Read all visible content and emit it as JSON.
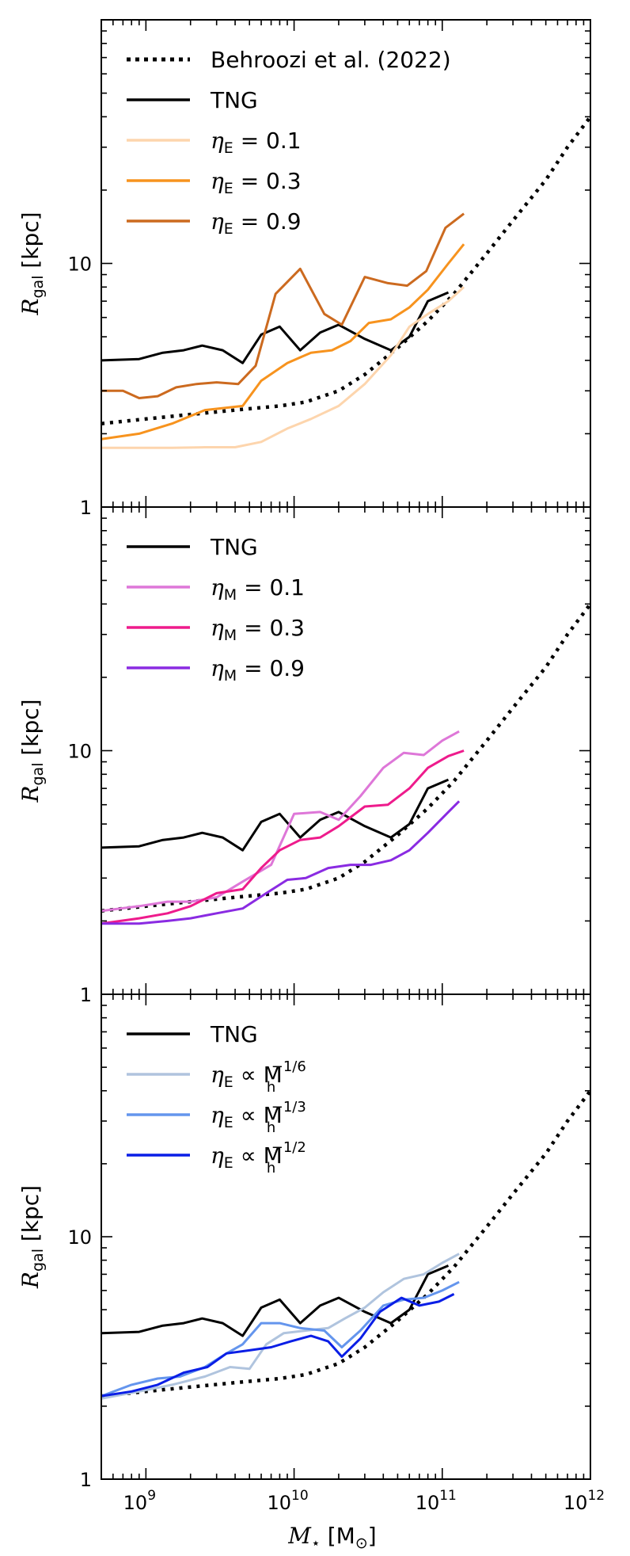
{
  "chart_data": [
    {
      "type": "line",
      "panel": "top",
      "ylabel": "R_gal [kpc]",
      "xlim": [
        500000000.0,
        1000000000000.0
      ],
      "ylim": [
        1,
        100
      ],
      "xscale": "log",
      "yscale": "log",
      "yticks": [
        {
          "value": 1,
          "label": "1"
        },
        {
          "value": 10,
          "label": "10"
        }
      ],
      "legend": [
        {
          "label": "Behroozi et al. (2022)",
          "color": "#000000",
          "dash": "dot"
        },
        {
          "label": "TNG",
          "color": "#000000",
          "dash": "solid"
        },
        {
          "label": "η_E = 0.1",
          "color": "#fdd5ad",
          "dash": "solid",
          "sym": "ηE",
          "rest": " = 0.1"
        },
        {
          "label": "η_E = 0.3",
          "color": "#f7931e",
          "dash": "solid",
          "sym": "ηE",
          "rest": " = 0.3"
        },
        {
          "label": "η_E = 0.9",
          "color": "#cc6a1f",
          "dash": "solid",
          "sym": "ηE",
          "rest": " = 0.9"
        }
      ],
      "series": [
        {
          "name": "Behroozi et al. (2022)",
          "color": "#000000",
          "style": "dot",
          "x": [
            500000000.0,
            1000000000.0,
            2000000000.0,
            4000000000.0,
            8000000000.0,
            12000000000.0,
            20000000000.0,
            30000000000.0,
            50000000000.0,
            80000000000.0,
            120000000000.0,
            200000000000.0,
            300000000000.0,
            500000000000.0,
            700000000000.0,
            1000000000000.0
          ],
          "y": [
            2.2,
            2.3,
            2.4,
            2.5,
            2.6,
            2.7,
            3.0,
            3.5,
            4.5,
            5.8,
            7.5,
            11,
            15,
            22,
            30,
            40
          ]
        },
        {
          "name": "TNG",
          "color": "#000000",
          "style": "solid",
          "x": [
            500000000.0,
            900000000.0,
            1300000000.0,
            1800000000.0,
            2400000000.0,
            3300000000.0,
            4500000000.0,
            6000000000.0,
            8000000000.0,
            11000000000.0,
            15000000000.0,
            20000000000.0,
            30000000000.0,
            45000000000.0,
            60000000000.0,
            80000000000.0,
            110000000000.0
          ],
          "y": [
            4.0,
            4.05,
            4.3,
            4.4,
            4.6,
            4.4,
            3.9,
            5.1,
            5.5,
            4.4,
            5.2,
            5.6,
            4.9,
            4.4,
            5.0,
            7.0,
            7.6
          ]
        },
        {
          "name": "η_E = 0.1",
          "color": "#fdd5ad",
          "style": "solid",
          "x": [
            500000000.0,
            900000000.0,
            1500000000.0,
            2500000000.0,
            4000000000.0,
            6000000000.0,
            9000000000.0,
            13000000000.0,
            20000000000.0,
            30000000000.0,
            45000000000.0,
            60000000000.0,
            80000000000.0,
            110000000000.0,
            140000000000.0
          ],
          "y": [
            1.75,
            1.75,
            1.75,
            1.76,
            1.76,
            1.85,
            2.1,
            2.3,
            2.6,
            3.2,
            4.2,
            5.5,
            6.2,
            7.0,
            8.0
          ]
        },
        {
          "name": "η_E = 0.3",
          "color": "#f7931e",
          "style": "solid",
          "x": [
            500000000.0,
            900000000.0,
            1500000000.0,
            2500000000.0,
            4500000000.0,
            6000000000.0,
            9000000000.0,
            13000000000.0,
            18000000000.0,
            24000000000.0,
            32000000000.0,
            45000000000.0,
            60000000000.0,
            80000000000.0,
            110000000000.0,
            140000000000.0
          ],
          "y": [
            1.9,
            2.0,
            2.2,
            2.5,
            2.6,
            3.3,
            3.9,
            4.3,
            4.4,
            4.8,
            5.7,
            5.9,
            6.6,
            7.8,
            10,
            12
          ]
        },
        {
          "name": "η_E = 0.9",
          "color": "#cc6a1f",
          "style": "solid",
          "x": [
            500000000.0,
            700000000.0,
            900000000.0,
            1200000000.0,
            1600000000.0,
            2200000000.0,
            3000000000.0,
            4200000000.0,
            5500000000.0,
            7500000000.0,
            11000000000.0,
            16000000000.0,
            21000000000.0,
            30000000000.0,
            43000000000.0,
            58000000000.0,
            78000000000.0,
            105000000000.0,
            140000000000.0
          ],
          "y": [
            3.0,
            3.0,
            2.8,
            2.85,
            3.1,
            3.2,
            3.25,
            3.2,
            3.8,
            7.5,
            9.5,
            6.2,
            5.6,
            8.8,
            8.3,
            8.1,
            9.3,
            14,
            16
          ]
        }
      ]
    },
    {
      "type": "line",
      "panel": "middle",
      "ylabel": "R_gal [kpc]",
      "xlim": [
        500000000.0,
        1000000000000.0
      ],
      "ylim": [
        1,
        100
      ],
      "xscale": "log",
      "yscale": "log",
      "yticks": [
        {
          "value": 1,
          "label": "1"
        },
        {
          "value": 10,
          "label": "10"
        }
      ],
      "legend": [
        {
          "label": "TNG",
          "color": "#000000",
          "dash": "solid"
        },
        {
          "label": "η_M = 0.1",
          "color": "#de77d8",
          "dash": "solid",
          "sym": "ηM",
          "rest": " = 0.1"
        },
        {
          "label": "η_M = 0.3",
          "color": "#ee1b8c",
          "dash": "solid",
          "sym": "ηM",
          "rest": " = 0.3"
        },
        {
          "label": "η_M = 0.9",
          "color": "#8a2be2",
          "dash": "solid",
          "sym": "ηM",
          "rest": " = 0.9"
        }
      ],
      "series": [
        {
          "name": "Behroozi et al. (2022)",
          "color": "#000000",
          "style": "dot",
          "x": [
            500000000.0,
            1000000000.0,
            2000000000.0,
            4000000000.0,
            8000000000.0,
            12000000000.0,
            20000000000.0,
            30000000000.0,
            50000000000.0,
            80000000000.0,
            120000000000.0,
            200000000000.0,
            300000000000.0,
            500000000000.0,
            700000000000.0,
            1000000000000.0
          ],
          "y": [
            2.2,
            2.3,
            2.4,
            2.5,
            2.6,
            2.7,
            3.0,
            3.5,
            4.5,
            5.8,
            7.5,
            11,
            15,
            22,
            30,
            40
          ]
        },
        {
          "name": "TNG",
          "color": "#000000",
          "style": "solid",
          "x": [
            500000000.0,
            900000000.0,
            1300000000.0,
            1800000000.0,
            2400000000.0,
            3300000000.0,
            4500000000.0,
            6000000000.0,
            8000000000.0,
            11000000000.0,
            15000000000.0,
            20000000000.0,
            30000000000.0,
            45000000000.0,
            60000000000.0,
            80000000000.0,
            110000000000.0
          ],
          "y": [
            4.0,
            4.05,
            4.3,
            4.4,
            4.6,
            4.4,
            3.9,
            5.1,
            5.5,
            4.4,
            5.2,
            5.6,
            4.9,
            4.4,
            5.0,
            7.0,
            7.6
          ]
        },
        {
          "name": "η_M = 0.1",
          "color": "#de77d8",
          "style": "solid",
          "x": [
            500000000.0,
            900000000.0,
            1400000000.0,
            2000000000.0,
            3000000000.0,
            4500000000.0,
            7000000000.0,
            10000000000.0,
            15000000000.0,
            20000000000.0,
            28000000000.0,
            40000000000.0,
            55000000000.0,
            75000000000.0,
            100000000000.0,
            130000000000.0
          ],
          "y": [
            2.2,
            2.3,
            2.4,
            2.4,
            2.5,
            2.9,
            3.4,
            5.5,
            5.6,
            5.2,
            6.5,
            8.5,
            9.8,
            9.6,
            11,
            12
          ]
        },
        {
          "name": "η_M = 0.3",
          "color": "#ee1b8c",
          "style": "solid",
          "x": [
            500000000.0,
            900000000.0,
            1400000000.0,
            2000000000.0,
            3000000000.0,
            4500000000.0,
            6000000000.0,
            8000000000.0,
            11000000000.0,
            15000000000.0,
            20000000000.0,
            30000000000.0,
            43000000000.0,
            60000000000.0,
            80000000000.0,
            110000000000.0,
            140000000000.0
          ],
          "y": [
            1.95,
            2.05,
            2.15,
            2.3,
            2.6,
            2.7,
            3.3,
            3.9,
            4.3,
            4.4,
            4.9,
            5.9,
            6.0,
            7.0,
            8.5,
            9.5,
            10
          ]
        },
        {
          "name": "η_M = 0.9",
          "color": "#8a2be2",
          "style": "solid",
          "x": [
            500000000.0,
            900000000.0,
            1400000000.0,
            2000000000.0,
            3000000000.0,
            4500000000.0,
            6500000000.0,
            9000000000.0,
            12000000000.0,
            17000000000.0,
            24000000000.0,
            33000000000.0,
            45000000000.0,
            60000000000.0,
            80000000000.0,
            110000000000.0,
            130000000000.0
          ],
          "y": [
            1.95,
            1.95,
            2.0,
            2.05,
            2.15,
            2.25,
            2.6,
            2.95,
            3.0,
            3.3,
            3.4,
            3.4,
            3.55,
            3.9,
            4.6,
            5.6,
            6.2
          ]
        }
      ]
    },
    {
      "type": "line",
      "panel": "bottom",
      "xlabel": "M_star [M_sun]",
      "ylabel": "R_gal [kpc]",
      "xlim": [
        500000000.0,
        1000000000000.0
      ],
      "ylim": [
        1,
        100
      ],
      "xscale": "log",
      "yscale": "log",
      "xticks": [
        {
          "value": 1000000000.0,
          "base": "10",
          "exp": "9"
        },
        {
          "value": 10000000000.0,
          "base": "10",
          "exp": "10"
        },
        {
          "value": 100000000000.0,
          "base": "10",
          "exp": "11"
        },
        {
          "value": 1000000000000.0,
          "base": "10",
          "exp": "12"
        }
      ],
      "yticks": [
        {
          "value": 1,
          "label": "1"
        },
        {
          "value": 10,
          "label": "10"
        }
      ],
      "legend": [
        {
          "label": "TNG",
          "color": "#000000",
          "dash": "solid"
        },
        {
          "label": "η_E ∝ M_h^-1/6",
          "color": "#b0c4de",
          "dash": "solid",
          "sym": "ηE",
          "rest": " ∝ M",
          "sub": "h",
          "sup": "−1/6"
        },
        {
          "label": "η_E ∝ M_h^-1/3",
          "color": "#6495ed",
          "dash": "solid",
          "sym": "ηE",
          "rest": " ∝ M",
          "sub": "h",
          "sup": "−1/3"
        },
        {
          "label": "η_E ∝ M_h^-1/2",
          "color": "#0a1ee6",
          "dash": "solid",
          "sym": "ηE",
          "rest": " ∝ M",
          "sub": "h",
          "sup": "−1/2"
        }
      ],
      "series": [
        {
          "name": "Behroozi et al. (2022)",
          "color": "#000000",
          "style": "dot",
          "x": [
            500000000.0,
            1000000000.0,
            2000000000.0,
            4000000000.0,
            8000000000.0,
            12000000000.0,
            20000000000.0,
            30000000000.0,
            50000000000.0,
            80000000000.0,
            120000000000.0,
            200000000000.0,
            300000000000.0,
            500000000000.0,
            700000000000.0,
            1000000000000.0
          ],
          "y": [
            2.2,
            2.3,
            2.4,
            2.5,
            2.6,
            2.7,
            3.0,
            3.5,
            4.5,
            5.8,
            7.5,
            11,
            15,
            22,
            30,
            40
          ]
        },
        {
          "name": "TNG",
          "color": "#000000",
          "style": "solid",
          "x": [
            500000000.0,
            900000000.0,
            1300000000.0,
            1800000000.0,
            2400000000.0,
            3300000000.0,
            4500000000.0,
            6000000000.0,
            8000000000.0,
            11000000000.0,
            15000000000.0,
            20000000000.0,
            30000000000.0,
            45000000000.0,
            60000000000.0,
            80000000000.0,
            110000000000.0
          ],
          "y": [
            4.0,
            4.05,
            4.3,
            4.4,
            4.6,
            4.4,
            3.9,
            5.1,
            5.5,
            4.4,
            5.2,
            5.6,
            4.9,
            4.4,
            5.0,
            7.0,
            7.6
          ]
        },
        {
          "name": "η_E ∝ M_h^-1/6",
          "color": "#b0c4de",
          "style": "solid",
          "x": [
            500000000.0,
            900000000.0,
            1500000000.0,
            2500000000.0,
            3700000000.0,
            5000000000.0,
            6500000000.0,
            8500000000.0,
            12000000000.0,
            17000000000.0,
            22000000000.0,
            30000000000.0,
            40000000000.0,
            55000000000.0,
            75000000000.0,
            100000000000.0,
            130000000000.0
          ],
          "y": [
            2.15,
            2.3,
            2.45,
            2.65,
            2.9,
            2.85,
            3.6,
            4.0,
            4.1,
            4.2,
            4.6,
            5.1,
            5.9,
            6.7,
            7.0,
            7.8,
            8.5
          ]
        },
        {
          "name": "η_E ∝ M_h^-1/3",
          "color": "#6495ed",
          "style": "solid",
          "x": [
            500000000.0,
            800000000.0,
            1200000000.0,
            1700000000.0,
            2500000000.0,
            3500000000.0,
            4500000000.0,
            6000000000.0,
            8000000000.0,
            11000000000.0,
            16000000000.0,
            21000000000.0,
            28000000000.0,
            40000000000.0,
            55000000000.0,
            75000000000.0,
            100000000000.0,
            130000000000.0
          ],
          "y": [
            2.2,
            2.45,
            2.6,
            2.65,
            2.9,
            3.3,
            3.6,
            4.4,
            4.4,
            4.2,
            4.1,
            3.5,
            4.1,
            5.2,
            5.5,
            5.6,
            6.0,
            6.5
          ]
        },
        {
          "name": "η_E ∝ M_h^-1/2",
          "color": "#0a1ee6",
          "style": "solid",
          "x": [
            500000000.0,
            800000000.0,
            1200000000.0,
            1800000000.0,
            2600000000.0,
            3500000000.0,
            5000000000.0,
            7000000000.0,
            9500000000.0,
            13000000000.0,
            17000000000.0,
            21000000000.0,
            28000000000.0,
            38000000000.0,
            53000000000.0,
            70000000000.0,
            95000000000.0,
            120000000000.0
          ],
          "y": [
            2.2,
            2.3,
            2.45,
            2.75,
            2.9,
            3.3,
            3.4,
            3.5,
            3.7,
            3.9,
            3.7,
            3.2,
            3.8,
            4.9,
            5.6,
            5.2,
            5.4,
            5.8
          ]
        }
      ]
    }
  ],
  "shared": {
    "xlabel_sym": "M",
    "xlabel_sub": "⋆",
    "xlabel_unit_open": " [M",
    "xlabel_unit_sub": "⊙",
    "xlabel_unit_close": "]",
    "ylabel_sym": "R",
    "ylabel_sub": "gal",
    "ylabel_unit": " [kpc]"
  }
}
